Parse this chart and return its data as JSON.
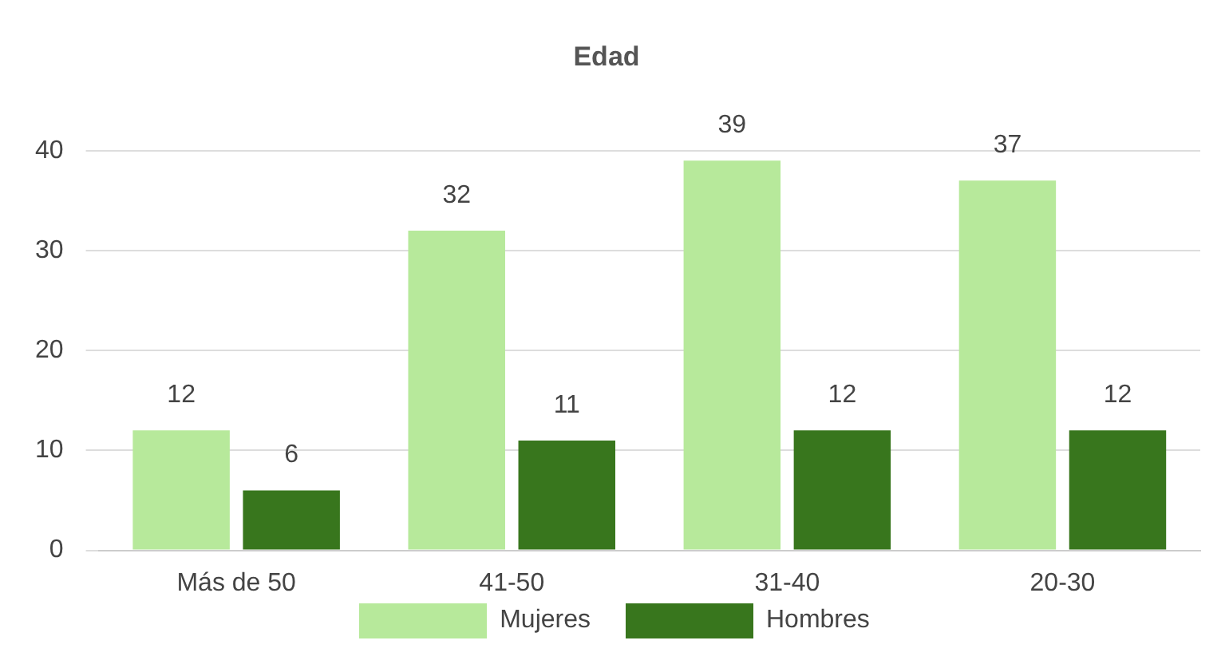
{
  "chart_data": {
    "type": "bar",
    "title": "Edad",
    "categories": [
      "Más de 50",
      "41-50",
      "31-40",
      "20-30"
    ],
    "series": [
      {
        "name": "Mujeres",
        "color": "#b7e99b",
        "values": [
          12,
          32,
          39,
          37
        ]
      },
      {
        "name": "Hombres",
        "color": "#38761d",
        "values": [
          6,
          11,
          12,
          12
        ]
      }
    ],
    "ylim": [
      0,
      40
    ],
    "yticks": [
      0,
      10,
      20,
      30,
      40
    ],
    "grid": "y",
    "legend": "bottom",
    "data_labels": true
  }
}
